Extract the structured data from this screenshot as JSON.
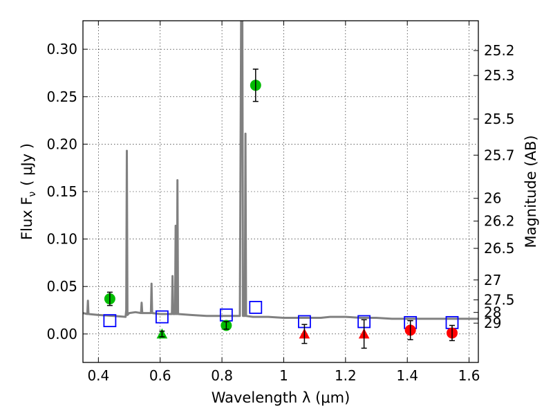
{
  "chart_data": {
    "type": "scatter",
    "xlabel": "Wavelength  λ (μm)",
    "ylabel": "Flux  F",
    "ylabel_sub": "ν",
    "ylabel_unit": "( μJy )",
    "y2label": "Magnitude (AB)",
    "xlim": [
      0.35,
      1.63
    ],
    "ylim": [
      -0.03,
      0.33
    ],
    "grid": true,
    "x_ticks": [
      0.4,
      0.6,
      0.8,
      1.0,
      1.2,
      1.4,
      1.6
    ],
    "x_tick_labels": [
      "0.4",
      "0.6",
      "0.8",
      "1",
      "1.2",
      "1.4",
      "1.6"
    ],
    "y_ticks": [
      0.0,
      0.05,
      0.1,
      0.15,
      0.2,
      0.25,
      0.3
    ],
    "y_tick_labels": [
      "0.00",
      "0.05",
      "0.10",
      "0.15",
      "0.20",
      "0.25",
      "0.30"
    ],
    "mag_ticks": [
      {
        "label": "25.2",
        "flux": 0.2986
      },
      {
        "label": "25.3",
        "flux": 0.2723
      },
      {
        "label": "25.5",
        "flux": 0.2265
      },
      {
        "label": "25.7",
        "flux": 0.1884
      },
      {
        "label": "26",
        "flux": 0.1429
      },
      {
        "label": "26.2",
        "flux": 0.1189
      },
      {
        "label": "26.5",
        "flux": 0.0902
      },
      {
        "label": "27",
        "flux": 0.0569
      },
      {
        "label": "27.5",
        "flux": 0.0359
      },
      {
        "label": "28",
        "flux": 0.0227
      },
      {
        "label": "29",
        "flux": 0.0114
      }
    ],
    "detections": [
      {
        "x": 0.437,
        "y": 0.037,
        "err": 0.007,
        "color": "#00bb00"
      },
      {
        "x": 0.909,
        "y": 0.262,
        "err": 0.017,
        "color": "#00bb00"
      },
      {
        "x": 0.814,
        "y": 0.009,
        "err": 0.004,
        "color": "#00bb00"
      },
      {
        "x": 1.41,
        "y": 0.004,
        "err": 0.01,
        "color": "#ff0000"
      },
      {
        "x": 1.545,
        "y": 0.001,
        "err": 0.008,
        "color": "#ff0000"
      }
    ],
    "upper_limits": [
      {
        "x": 0.606,
        "y": 0.0,
        "err": 0.003,
        "color": "#00bb00"
      },
      {
        "x": 1.067,
        "y": 0.0,
        "err": 0.01,
        "color": "#ff0000"
      },
      {
        "x": 1.26,
        "y": 0.0,
        "err": 0.015,
        "color": "#ff0000"
      }
    ],
    "model_photometry": {
      "color": "#0000ff",
      "points": [
        {
          "x": 0.437,
          "y": 0.014
        },
        {
          "x": 0.606,
          "y": 0.018
        },
        {
          "x": 0.814,
          "y": 0.02
        },
        {
          "x": 0.909,
          "y": 0.028
        },
        {
          "x": 1.067,
          "y": 0.013
        },
        {
          "x": 1.26,
          "y": 0.013
        },
        {
          "x": 1.41,
          "y": 0.012
        },
        {
          "x": 1.545,
          "y": 0.012
        }
      ]
    },
    "model_spectrum": {
      "color": "#808080",
      "points": [
        [
          0.35,
          0.022
        ],
        [
          0.364,
          0.021
        ],
        [
          0.366,
          0.035
        ],
        [
          0.368,
          0.021
        ],
        [
          0.4,
          0.02
        ],
        [
          0.45,
          0.019
        ],
        [
          0.488,
          0.018
        ],
        [
          0.49,
          0.025
        ],
        [
          0.492,
          0.193
        ],
        [
          0.494,
          0.02
        ],
        [
          0.5,
          0.022
        ],
        [
          0.52,
          0.023
        ],
        [
          0.538,
          0.022
        ],
        [
          0.54,
          0.033
        ],
        [
          0.542,
          0.022
        ],
        [
          0.56,
          0.022
        ],
        [
          0.57,
          0.022
        ],
        [
          0.572,
          0.053
        ],
        [
          0.574,
          0.022
        ],
        [
          0.6,
          0.021
        ],
        [
          0.638,
          0.021
        ],
        [
          0.64,
          0.061
        ],
        [
          0.642,
          0.021
        ],
        [
          0.648,
          0.021
        ],
        [
          0.65,
          0.114
        ],
        [
          0.652,
          0.021
        ],
        [
          0.654,
          0.021
        ],
        [
          0.656,
          0.162
        ],
        [
          0.658,
          0.021
        ],
        [
          0.7,
          0.02
        ],
        [
          0.75,
          0.019
        ],
        [
          0.8,
          0.019
        ],
        [
          0.85,
          0.019
        ],
        [
          0.858,
          0.019
        ],
        [
          0.862,
          0.33
        ],
        [
          0.866,
          0.33
        ],
        [
          0.868,
          0.019
        ],
        [
          0.874,
          0.019
        ],
        [
          0.876,
          0.211
        ],
        [
          0.878,
          0.019
        ],
        [
          0.9,
          0.018
        ],
        [
          0.95,
          0.018
        ],
        [
          1.0,
          0.017
        ],
        [
          1.05,
          0.017
        ],
        [
          1.08,
          0.017
        ],
        [
          1.12,
          0.017
        ],
        [
          1.15,
          0.018
        ],
        [
          1.2,
          0.018
        ],
        [
          1.25,
          0.017
        ],
        [
          1.3,
          0.017
        ],
        [
          1.35,
          0.016
        ],
        [
          1.4,
          0.016
        ],
        [
          1.45,
          0.016
        ],
        [
          1.5,
          0.016
        ],
        [
          1.55,
          0.016
        ],
        [
          1.6,
          0.016
        ],
        [
          1.63,
          0.016
        ]
      ]
    }
  }
}
